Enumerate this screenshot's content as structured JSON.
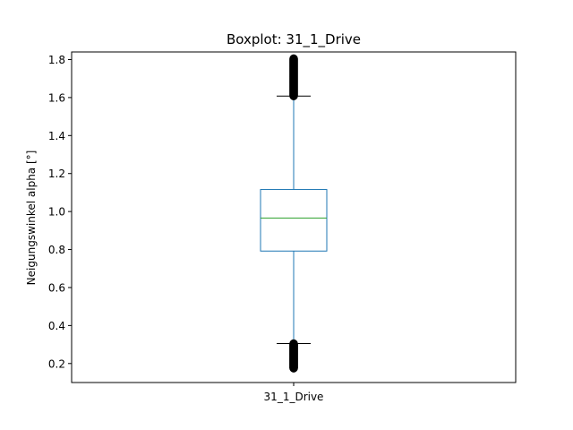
{
  "chart_data": {
    "type": "boxplot",
    "title": "Boxplot: 31_1_Drive",
    "xlabel": "",
    "ylabel": "Neigungswinkel alpha [°]",
    "categories": [
      "31_1_Drive"
    ],
    "ylim": [
      0.1,
      1.84
    ],
    "yticks": [
      0.2,
      0.4,
      0.6,
      0.8,
      1.0,
      1.2,
      1.4,
      1.6,
      1.8
    ],
    "ytick_labels": [
      "0.2",
      "0.4",
      "0.6",
      "0.8",
      "1.0",
      "1.2",
      "1.4",
      "1.6",
      "1.8"
    ],
    "grid": false,
    "boxes": [
      {
        "category": "31_1_Drive",
        "whisker_low": 0.305,
        "q1": 0.792,
        "median": 0.966,
        "q3": 1.116,
        "whisker_high": 1.608,
        "outliers_low_range": [
          0.175,
          0.305
        ],
        "outliers_high_range": [
          1.608,
          1.805
        ]
      }
    ],
    "colors": {
      "box": "#1f77b4",
      "median": "#2ca02c",
      "caps": "#000000",
      "outliers": "#000000"
    }
  }
}
